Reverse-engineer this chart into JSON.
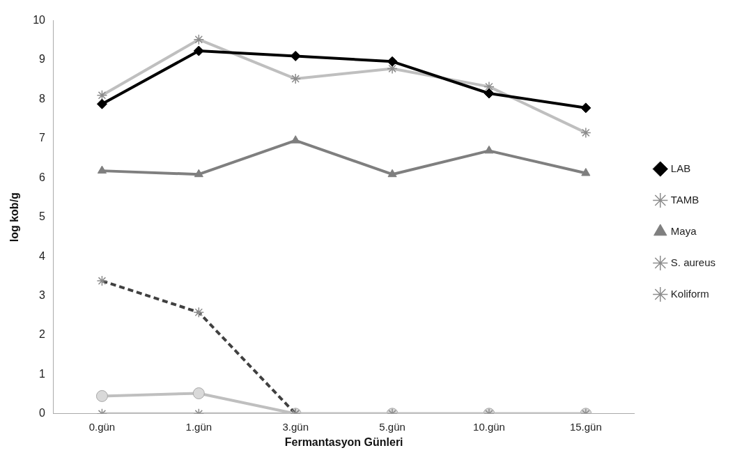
{
  "chart_data": {
    "type": "line",
    "xlabel": "Fermantasyon Günleri",
    "ylabel": "log kob/g",
    "categories": [
      "0.gün",
      "1.gün",
      "3.gün",
      "5.gün",
      "10.gün",
      "15.gün"
    ],
    "ylim": [
      0,
      10
    ],
    "yticks": [
      0,
      1,
      2,
      3,
      4,
      5,
      6,
      7,
      8,
      9,
      10
    ],
    "grid": false,
    "legend": "right",
    "series": [
      {
        "name": "LAB",
        "color": "#000000",
        "marker": "diamond",
        "line_style": "solid",
        "values": [
          7.88,
          9.23,
          9.1,
          8.96,
          8.15,
          7.78
        ]
      },
      {
        "name": "TAMB",
        "color": "#bfbfbf",
        "marker": "cross",
        "line_style": "solid",
        "values": [
          8.1,
          9.52,
          8.52,
          8.78,
          8.32,
          7.15
        ]
      },
      {
        "name": "Maya",
        "color": "#7f7f7f",
        "marker": "triangle",
        "line_style": "solid",
        "values": [
          6.18,
          6.09,
          6.95,
          6.09,
          6.69,
          6.12
        ]
      },
      {
        "name": "S. aureus",
        "color": "#bfbfbf",
        "marker": "cross",
        "line_style": "solid",
        "values": [
          0,
          0,
          0,
          0,
          0,
          0
        ]
      },
      {
        "name": "Koliform",
        "color": "#404040",
        "marker": "cross",
        "line_style": "dashed",
        "values": [
          3.38,
          2.58,
          0,
          null,
          null,
          null
        ]
      },
      {
        "color": "#bfbfbf",
        "marker": "circle",
        "line_style": "solid",
        "values": [
          0.45,
          0.52,
          0,
          0,
          0,
          0
        ]
      }
    ]
  }
}
